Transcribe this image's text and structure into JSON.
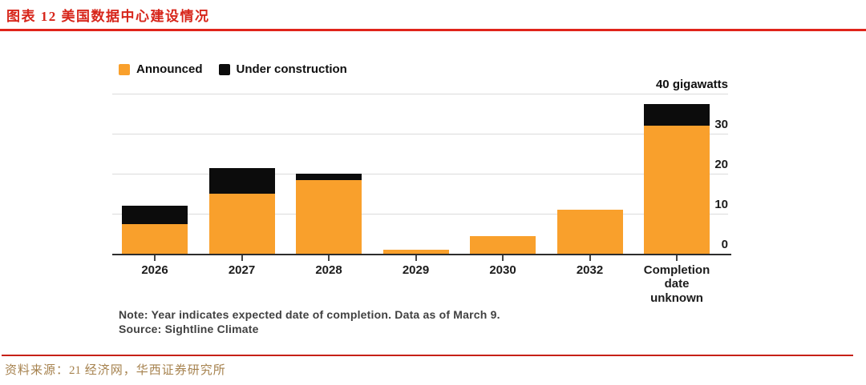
{
  "page": {
    "title": "图表 12 美国数据中心建设情况",
    "footer": {
      "source_prefix": "资料来源：",
      "source_number": "21",
      "source_rest": " 经济网，华西证券研究所"
    }
  },
  "colors": {
    "title_red": "#d7261b",
    "rule_red": "#e0241b",
    "footer_brown": "#a6824e",
    "announced_orange": "#f9a02c",
    "under_construction_black": "#0c0c0c",
    "gridline_gray": "#dbdbdb"
  },
  "chart_data": {
    "type": "bar",
    "stacked": true,
    "categories": [
      "2026",
      "2027",
      "2028",
      "2029",
      "2030",
      "2032",
      "Completion date unknown"
    ],
    "series": [
      {
        "name": "Announced",
        "color": "#f9a02c",
        "values": [
          7.5,
          15,
          18.5,
          1,
          4.5,
          11,
          32
        ]
      },
      {
        "name": "Under construction",
        "color": "#0c0c0c",
        "values": [
          4.5,
          6.5,
          1.5,
          0,
          0,
          0,
          5.5
        ]
      }
    ],
    "ylabel": "40 gigawatts",
    "xlabel": "",
    "title": "",
    "ylim": [
      0,
      40
    ],
    "yticks": [
      0,
      10,
      20,
      30,
      40
    ],
    "ytick_labels_shown": [
      0,
      10,
      20,
      30
    ],
    "grid": true,
    "legend_position": "top-left",
    "note": "Note: Year indicates expected date of completion. Data as of March 9.",
    "source": "Source: Sightline Climate"
  }
}
